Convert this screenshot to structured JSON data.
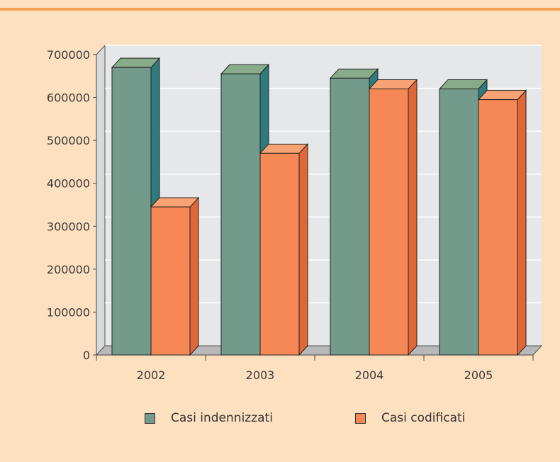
{
  "colors": {
    "background": "#fde0bf",
    "plot_area": "#e5e7e9",
    "accent_rule": "#f4a24f",
    "series_1_front": "#739a8a",
    "series_1_top": "#88ab8a",
    "series_1_side": "#2e7b7d",
    "series_2_front": "#f68855",
    "series_2_top": "#f9a374",
    "series_2_side": "#e06838"
  },
  "chart_data": {
    "type": "bar",
    "style": "3d-clustered-column",
    "categories": [
      "2002",
      "2003",
      "2004",
      "2005"
    ],
    "series": [
      {
        "name": "Casi indennizzati",
        "values": [
          670000,
          655000,
          645000,
          620000
        ]
      },
      {
        "name": "Casi codificati",
        "values": [
          345000,
          470000,
          620000,
          595000
        ]
      }
    ],
    "yticks": [
      "0",
      "100000",
      "200000",
      "300000",
      "400000",
      "500000",
      "600000",
      "700000"
    ],
    "ylim": [
      0,
      700000
    ],
    "grid": true,
    "legend_position": "bottom"
  }
}
